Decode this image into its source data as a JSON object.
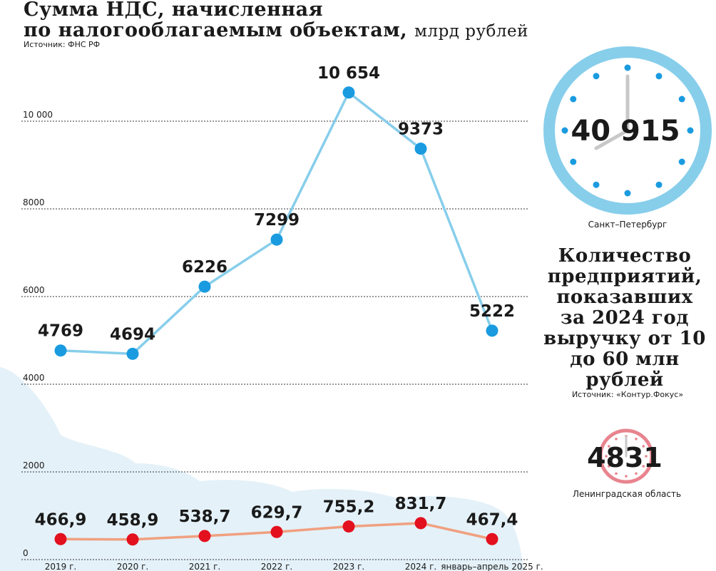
{
  "header": {
    "title_line1": "Сумма НДС, начисленная",
    "title_line2": "по налогооблагаемым объектам,",
    "title_unit": "млрд рублей",
    "source": "Источник: ФНС РФ"
  },
  "chart_data": {
    "type": "line",
    "categories": [
      "2019 г.",
      "2020 г.",
      "2021 г.",
      "2022 г.",
      "2023 г.",
      "2024 г.",
      "январь–апрель 2025 г."
    ],
    "series": [
      {
        "values": [
          4769,
          4694,
          6226,
          7299,
          10654,
          9373,
          5222
        ],
        "labels": [
          "4769",
          "4694",
          "6226",
          "7299",
          "10 654",
          "9373",
          "5222"
        ],
        "color": "#87ceeb",
        "marker_color": "#1a9be0"
      },
      {
        "values": [
          466.9,
          458.9,
          538.7,
          629.7,
          755.2,
          831.7,
          467.4
        ],
        "labels": [
          "466,9",
          "458,9",
          "538,7",
          "629,7",
          "755,2",
          "831,7",
          "467,4"
        ],
        "color": "#f0a080",
        "marker_color": "#e3101e"
      }
    ],
    "yticks": [
      0,
      2000,
      4000,
      6000,
      8000,
      10000
    ],
    "ytick_labels": [
      "0",
      "2000",
      "4000",
      "6000",
      "8000",
      "10 000"
    ],
    "ylim": [
      0,
      10654
    ],
    "grid": true
  },
  "right": {
    "spb_value": "40 915",
    "spb_label": "Санкт–Петербург",
    "title": "Количество предприятий, показавших за 2024 год выручку от 10 до 60 млн рублей",
    "source": "Источник: «Контур.Фокус»",
    "lo_value": "4831",
    "lo_label": "Ленинградская область"
  },
  "colors": {
    "clock_blue": "#87ceeb",
    "clock_dot_blue": "#1a9be0",
    "clock_red": "#e8848e",
    "cloud": "#e4f1f8",
    "text": "#1a1a1a"
  }
}
